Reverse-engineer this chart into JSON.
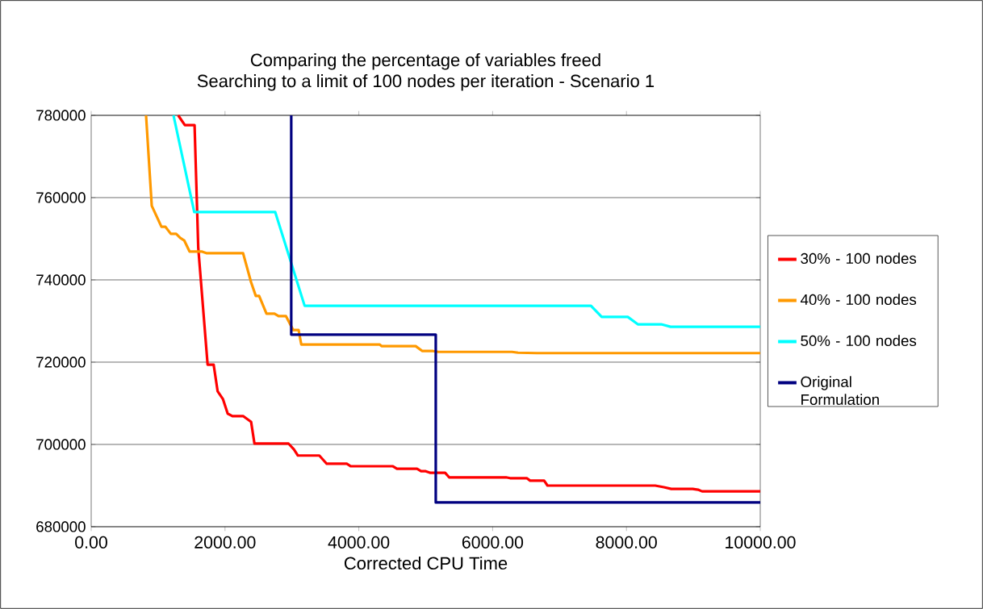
{
  "chart_data": {
    "type": "line",
    "title": "Comparing the percentage of variables freed",
    "subtitle": "Searching to a limit of 100 nodes per iteration  - Scenario 1",
    "xlabel": "Corrected CPU Time",
    "xlim": [
      0,
      10000
    ],
    "ylim": [
      680000,
      780000
    ],
    "xticks": [
      {
        "value": 0,
        "label": "0.00"
      },
      {
        "value": 2000,
        "label": "2000.00"
      },
      {
        "value": 4000,
        "label": "4000.00"
      },
      {
        "value": 6000,
        "label": "6000.00"
      },
      {
        "value": 8000,
        "label": "8000.00"
      },
      {
        "value": 10000,
        "label": "10000.00"
      }
    ],
    "yticks": [
      680000,
      700000,
      720000,
      740000,
      760000,
      780000
    ],
    "grid": "y",
    "legend": "right",
    "series": [
      {
        "name": "30% - 100 nodes",
        "color": "#ff0000",
        "x": [
          1300,
          1400,
          1545,
          1600,
          1740,
          1830,
          1890,
          1970,
          2040,
          2110,
          2270,
          2390,
          2440,
          2950,
          3030,
          3090,
          3410,
          3520,
          3820,
          3880,
          4310,
          4510,
          4570,
          4870,
          4930,
          5000,
          5070,
          5290,
          5350,
          6200,
          6260,
          6510,
          6560,
          6770,
          6820,
          8430,
          8560,
          8670,
          8990,
          9070,
          9130,
          10000
        ],
        "values": [
          780000,
          777600,
          777600,
          747800,
          719400,
          719400,
          712900,
          711000,
          707500,
          706900,
          706900,
          705500,
          700200,
          700200,
          698800,
          697300,
          697300,
          695300,
          695300,
          694700,
          694700,
          694700,
          694100,
          694100,
          693500,
          693500,
          693100,
          693100,
          692000,
          692000,
          691800,
          691800,
          691200,
          691200,
          690000,
          690000,
          689600,
          689200,
          689200,
          689000,
          688600,
          688600
        ]
      },
      {
        "name": "40% - 100 nodes",
        "color": "#ff9900",
        "x": [
          820,
          905,
          1050,
          1110,
          1190,
          1270,
          1330,
          1390,
          1470,
          1650,
          1720,
          2270,
          2390,
          2460,
          2510,
          2620,
          2740,
          2800,
          2910,
          3020,
          3100,
          3140,
          4310,
          4340,
          4850,
          4950,
          5110,
          5190,
          6290,
          6380,
          6660,
          10000
        ],
        "values": [
          780000,
          758000,
          752900,
          752900,
          751200,
          751200,
          750200,
          749600,
          746900,
          746900,
          746500,
          746500,
          739400,
          736100,
          736100,
          731800,
          731800,
          731200,
          731200,
          727800,
          727800,
          724300,
          724300,
          723900,
          723900,
          722700,
          722700,
          722500,
          722500,
          722300,
          722200,
          722200
        ]
      },
      {
        "name": "50% - 100 nodes",
        "color": "#00ffff",
        "x": [
          1230,
          1540,
          2750,
          3190,
          7470,
          7630,
          8020,
          8170,
          8520,
          8660,
          10000
        ],
        "values": [
          780000,
          756500,
          756500,
          733700,
          733700,
          731000,
          731000,
          729200,
          729200,
          728600,
          728600
        ]
      },
      {
        "name": "Original Formulation",
        "color": "#000080",
        "x": [
          2990,
          2990,
          5150,
          5150,
          10000
        ],
        "values": [
          780000,
          726700,
          726700,
          685900,
          685900
        ]
      }
    ]
  }
}
